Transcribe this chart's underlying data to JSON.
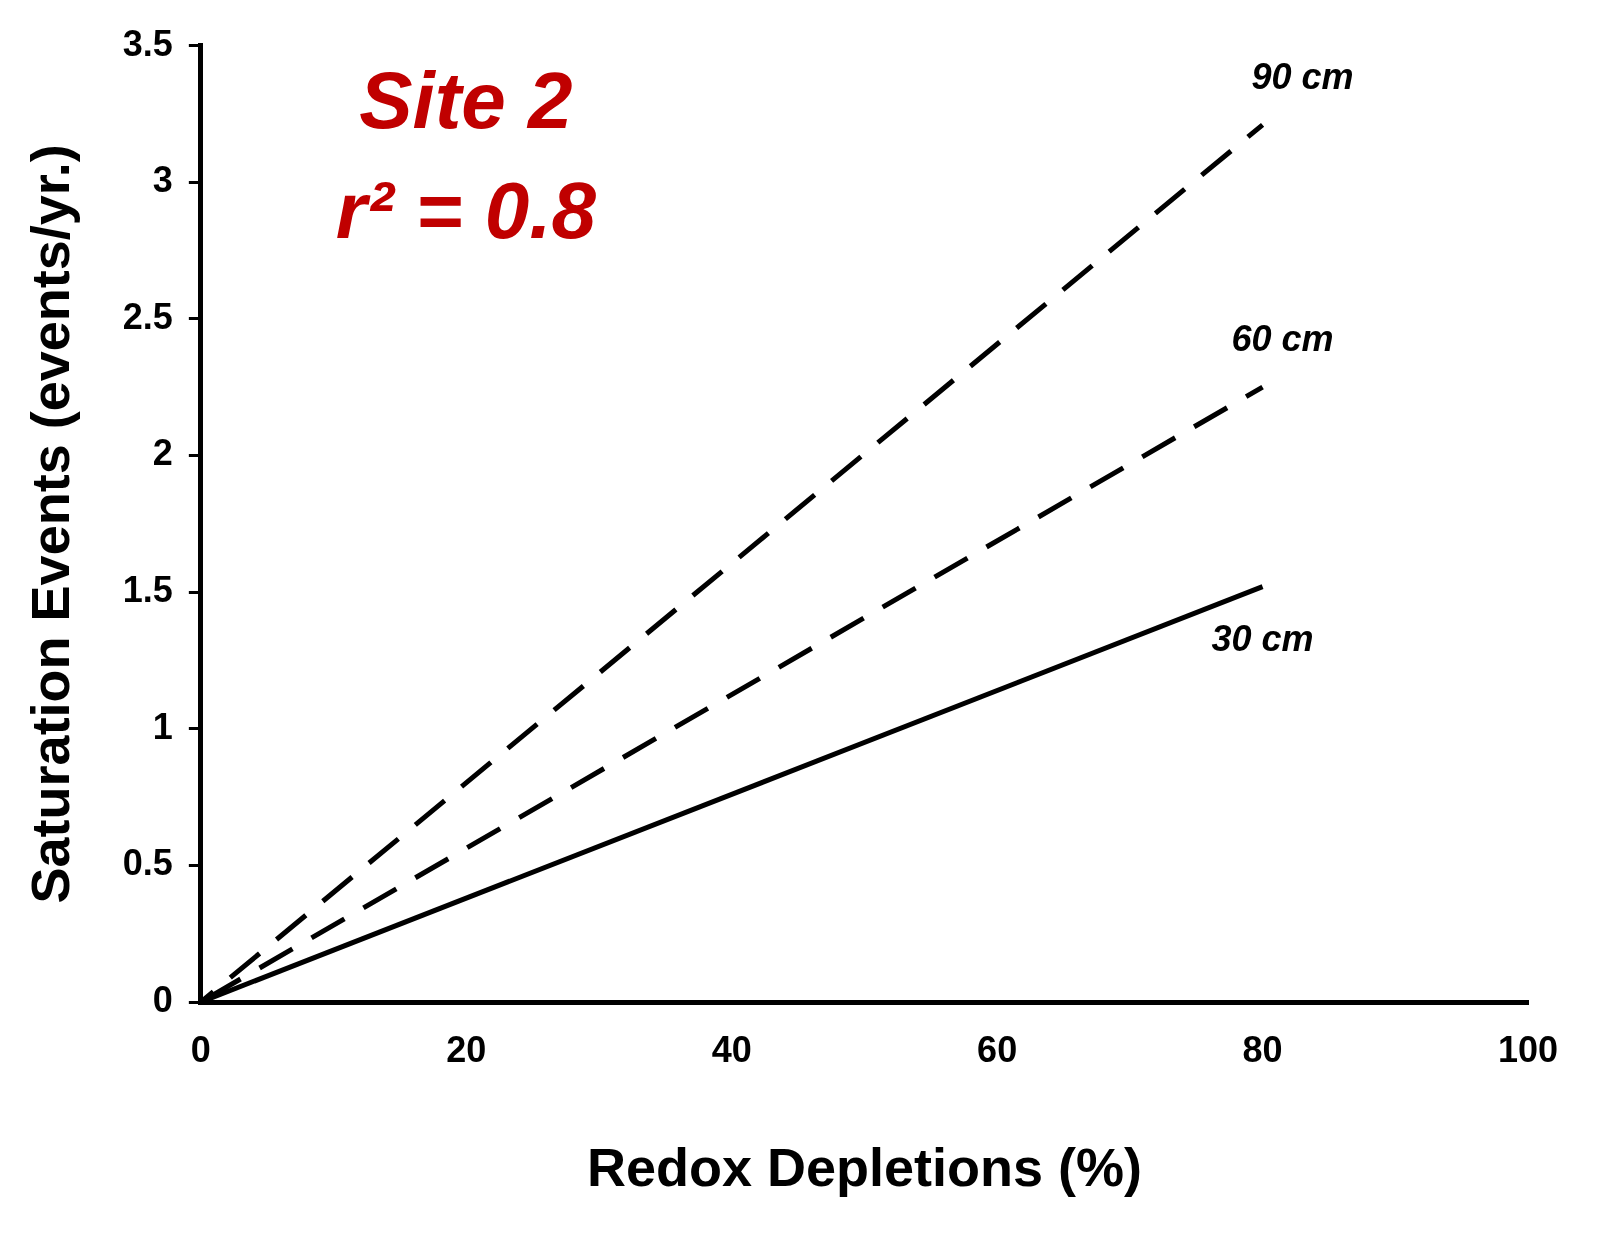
{
  "chart_data": {
    "type": "line",
    "title": "Site 2",
    "subtitle": "r² = 0.8",
    "xlabel": "Redox Depletions (%)",
    "ylabel": "Saturation Events (events/yr.)",
    "x": [
      0,
      80
    ],
    "series": [
      {
        "name": "30 cm",
        "color": "#000000",
        "values": [
          0,
          1.52
        ],
        "line_style": "solid"
      },
      {
        "name": "60 cm",
        "color": "#000000",
        "values": [
          0,
          2.25
        ],
        "line_style": "dashed"
      },
      {
        "name": "90 cm",
        "color": "#000000",
        "values": [
          0,
          3.21
        ],
        "line_style": "dashed"
      }
    ],
    "xlim": [
      0,
      100
    ],
    "xticks": [
      0,
      20,
      40,
      60,
      80,
      100
    ],
    "ylim": [
      0,
      3.5
    ],
    "yticks": [
      0,
      0.5,
      1,
      1.5,
      2,
      2.5,
      3,
      3.5
    ],
    "grid": false,
    "legend": false,
    "marker": "none"
  }
}
